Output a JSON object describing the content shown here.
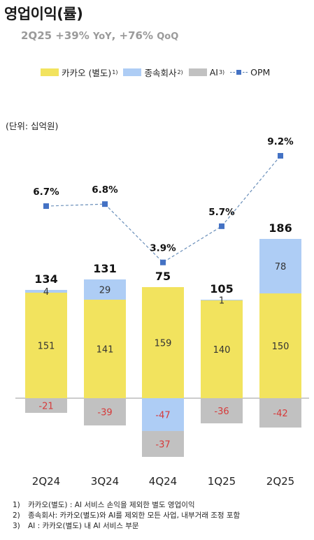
{
  "title": "영업이익(률)",
  "subtitle": {
    "main": "2Q25 +39% YoY, +76% QoQ",
    "q": "2Q25 +39%",
    "yoy": "YoY",
    "q2": ", +76%",
    "qoq": "QoQ"
  },
  "legend": {
    "kakao": "카카오 (별도)",
    "kakao_sup": "1)",
    "subsidiaries": "종속회사",
    "subsidiaries_sup": "2)",
    "ai": "AI",
    "ai_sup": "3)",
    "opm": "OPM"
  },
  "unit_label": "(단위: 십억원)",
  "colors": {
    "kakao": "#f2e35e",
    "subsidiaries": "#aecdf5",
    "ai": "#c1c1c1",
    "opm": "#4472c4",
    "negative_text": "#d63a3a"
  },
  "chart_data": {
    "type": "bar",
    "stacked": true,
    "categories": [
      "2Q24",
      "3Q24",
      "4Q24",
      "1Q25",
      "2Q25"
    ],
    "series": [
      {
        "name": "카카오 (별도)",
        "values": [
          151,
          141,
          159,
          140,
          150
        ]
      },
      {
        "name": "종속회사",
        "values": [
          4,
          29,
          -47,
          1,
          78
        ]
      },
      {
        "name": "AI",
        "values": [
          -21,
          -39,
          -37,
          -36,
          -42
        ]
      }
    ],
    "totals": [
      134,
      131,
      75,
      105,
      186
    ],
    "opm": {
      "name": "OPM",
      "values": [
        6.7,
        6.8,
        3.9,
        5.7,
        9.2
      ],
      "labels": [
        "6.7%",
        "6.8%",
        "3.9%",
        "5.7%",
        "9.2%"
      ]
    },
    "segment_labels": {
      "kakao": [
        "151",
        "141",
        "159",
        "140",
        "150"
      ],
      "subsidiaries": [
        "4",
        "29",
        "-47",
        "1",
        "78"
      ],
      "ai": [
        "-21",
        "-39",
        "-37",
        "-36",
        "-42"
      ]
    }
  },
  "footnotes": [
    {
      "num": "1)",
      "text": "카카오(별도) : AI 서비스 손익을 제외한 별도 영업이익"
    },
    {
      "num": "2)",
      "text": "종속회사: 카카오(별도)와 AI를 제외한 모든 사업, 내부거래 조정 포함"
    },
    {
      "num": "3)",
      "text": "AI : 카카오(별도) 내 AI 서비스 부문"
    }
  ]
}
